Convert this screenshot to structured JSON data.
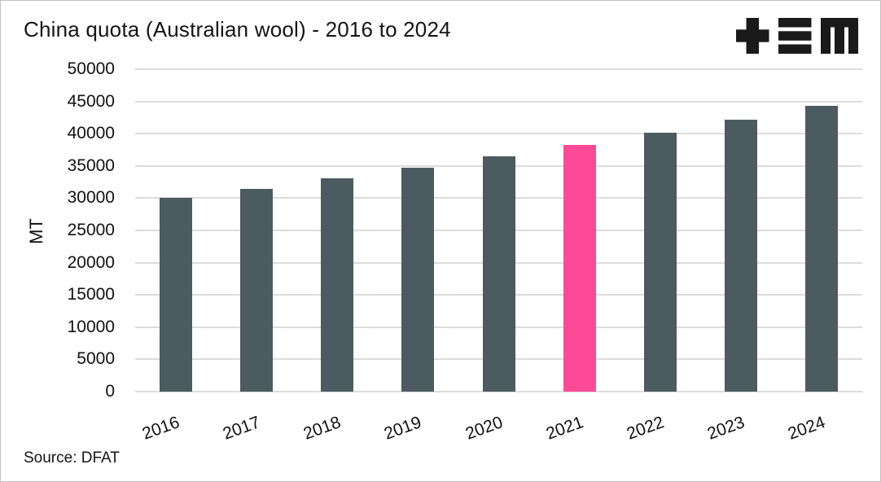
{
  "header": {
    "title": "China quota (Australian wool) - 2016 to 2024",
    "logo": "tem-logo"
  },
  "chart_data": {
    "type": "bar",
    "title": "China quota (Australian wool) - 2016 to 2024",
    "categories": [
      "2016",
      "2017",
      "2018",
      "2019",
      "2020",
      "2021",
      "2022",
      "2023",
      "2024"
    ],
    "values": [
      30000,
      31500,
      33075,
      34729,
      36465,
      38288,
      40203,
      42213,
      44324
    ],
    "highlight_index": 5,
    "xlabel": "",
    "ylabel": "MT",
    "ylim": [
      0,
      50000
    ],
    "ytick_step": 5000,
    "grid": true,
    "legend": "none",
    "bar_color": "#4c5b5f",
    "highlight_color": "#fd4a96",
    "gridline_color": "#dcdcdc",
    "text_color": "#111111"
  },
  "footer": {
    "source": "Source: DFAT"
  }
}
